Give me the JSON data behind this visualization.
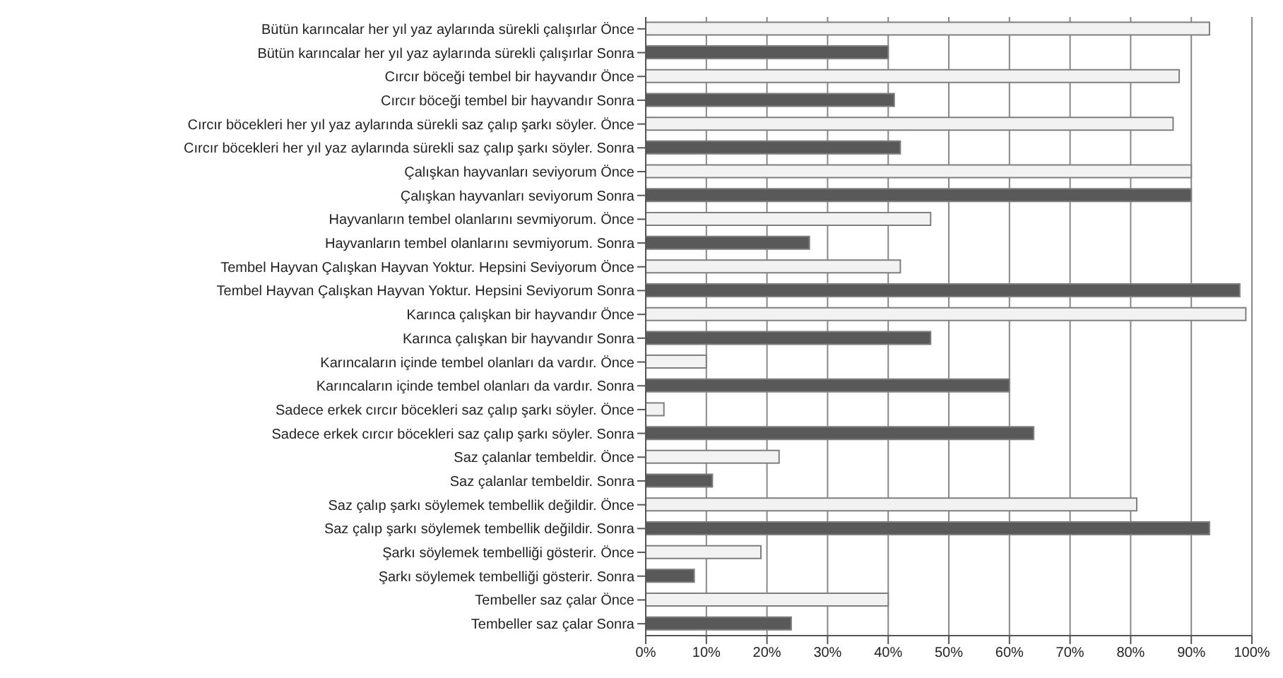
{
  "chart_data": {
    "type": "bar",
    "orientation": "horizontal",
    "categories": [
      "Bütün karıncalar her yıl yaz aylarında sürekli çalışırlar Önce",
      "Bütün karıncalar her yıl yaz aylarında sürekli çalışırlar Sonra",
      "Cırcır böceği tembel bir hayvandır Önce",
      "Cırcır böceği tembel bir hayvandır Sonra",
      "Cırcır böcekleri her yıl yaz aylarında sürekli saz çalıp şarkı söyler. Önce",
      "Cırcır böcekleri her yıl yaz aylarında sürekli saz çalıp şarkı söyler. Sonra",
      "Çalışkan hayvanları seviyorum Önce",
      "Çalışkan hayvanları seviyorum Sonra",
      "Hayvanların tembel olanlarını sevmiyorum. Önce",
      "Hayvanların tembel olanlarını sevmiyorum. Sonra",
      "Tembel Hayvan Çalışkan Hayvan Yoktur. Hepsini Seviyorum Önce",
      "Tembel Hayvan Çalışkan Hayvan Yoktur. Hepsini Seviyorum Sonra",
      "Karınca çalışkan bir hayvandır Önce",
      "Karınca çalışkan bir hayvandır Sonra",
      "Karıncaların içinde tembel olanları da vardır. Önce",
      "Karıncaların içinde tembel olanları da vardır. Sonra",
      "Sadece erkek cırcır böcekleri saz çalıp şarkı söyler. Önce",
      "Sadece erkek cırcır böcekleri saz çalıp şarkı söyler. Sonra",
      "Saz çalanlar tembeldir. Önce",
      "Saz çalanlar tembeldir. Sonra",
      "Saz çalıp şarkı söylemek tembellik değildir. Önce",
      "Saz çalıp şarkı söylemek tembellik değildir. Sonra",
      "Şarkı söylemek tembelliği gösterir. Önce",
      "Şarkı söylemek tembelliği gösterir. Sonra",
      "Tembeller saz çalar Önce",
      "Tembeller saz çalar Sonra"
    ],
    "values": [
      93,
      40,
      88,
      41,
      87,
      42,
      90,
      90,
      47,
      27,
      42,
      98,
      99,
      47,
      10,
      60,
      3,
      64,
      22,
      11,
      81,
      93,
      19,
      8,
      40,
      24
    ],
    "colors": [
      "#f2f2f2",
      "#595959",
      "#f2f2f2",
      "#595959",
      "#f2f2f2",
      "#595959",
      "#f2f2f2",
      "#595959",
      "#f2f2f2",
      "#595959",
      "#f2f2f2",
      "#595959",
      "#f2f2f2",
      "#595959",
      "#f2f2f2",
      "#595959",
      "#f2f2f2",
      "#595959",
      "#f2f2f2",
      "#595959",
      "#f2f2f2",
      "#595959",
      "#f2f2f2",
      "#595959",
      "#f2f2f2",
      "#595959"
    ],
    "xlim": [
      0,
      100
    ],
    "xticks": [
      {
        "value": 0,
        "label": "0%"
      },
      {
        "value": 10,
        "label": "10%"
      },
      {
        "value": 20,
        "label": "20%"
      },
      {
        "value": 30,
        "label": "30%"
      },
      {
        "value": 40,
        "label": "40%"
      },
      {
        "value": 50,
        "label": "50%"
      },
      {
        "value": 60,
        "label": "60%"
      },
      {
        "value": 70,
        "label": "70%"
      },
      {
        "value": 80,
        "label": "80%"
      },
      {
        "value": 90,
        "label": "90%"
      },
      {
        "value": 100,
        "label": "100%"
      }
    ],
    "grid": "x"
  }
}
